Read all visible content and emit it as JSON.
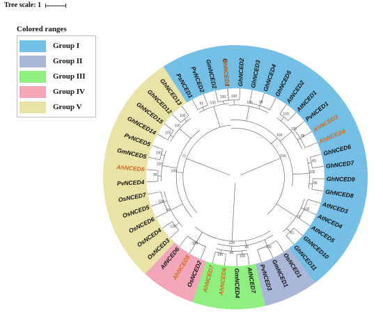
{
  "tree_scale": {
    "label": "Tree scale: 1"
  },
  "legend": {
    "title": "Colored ranges",
    "groups": [
      {
        "id": "I",
        "label": "Group I",
        "color": "#74bfe6"
      },
      {
        "id": "II",
        "label": "Group II",
        "color": "#a8b6d8"
      },
      {
        "id": "III",
        "label": "Group III",
        "color": "#8ef07e"
      },
      {
        "id": "IV",
        "label": "Group IV",
        "color": "#f2a6b7"
      },
      {
        "id": "V",
        "label": "Group V",
        "color": "#e9e3a6"
      }
    ]
  },
  "label_colors": {
    "default": "#111111",
    "highlight": "#d2691e"
  },
  "leaves": [
    {
      "name": "GhNCED1",
      "group": "I",
      "angle": 265,
      "highlight": false
    },
    {
      "name": "GhNCED2",
      "group": "I",
      "angle": 273,
      "highlight": false
    },
    {
      "name": "GhNCED3",
      "group": "I",
      "angle": 281,
      "highlight": false
    },
    {
      "name": "GhNCED4",
      "group": "I",
      "angle": 289,
      "highlight": false
    },
    {
      "name": "GhNCED5",
      "group": "I",
      "angle": 297,
      "highlight": false
    },
    {
      "name": "AtNCED2",
      "group": "I",
      "angle": 305,
      "highlight": false
    },
    {
      "name": "AtNCED1",
      "group": "I",
      "angle": 313,
      "highlight": false
    },
    {
      "name": "PvNCED1",
      "group": "I",
      "angle": 321,
      "highlight": false
    },
    {
      "name": "AhNCED3",
      "group": "I",
      "angle": 329,
      "highlight": true
    },
    {
      "name": "AhNCED4",
      "group": "I",
      "angle": 337,
      "highlight": true
    },
    {
      "name": "GhNCED6",
      "group": "I",
      "angle": 345,
      "highlight": false
    },
    {
      "name": "GhNCED7",
      "group": "I",
      "angle": 353,
      "highlight": false
    },
    {
      "name": "GhNCED9",
      "group": "I",
      "angle": 361,
      "highlight": false
    },
    {
      "name": "GhNCED8",
      "group": "I",
      "angle": 369,
      "highlight": false
    },
    {
      "name": "AtNCED3",
      "group": "I",
      "angle": 377,
      "highlight": false
    },
    {
      "name": "AtNCED4",
      "group": "I",
      "angle": 385,
      "highlight": false
    },
    {
      "name": "AtNCED5",
      "group": "I",
      "angle": 393,
      "highlight": false
    },
    {
      "name": "GhNCED10",
      "group": "I",
      "angle": 401,
      "highlight": false
    },
    {
      "name": "GhNCED11",
      "group": "I",
      "angle": 409,
      "highlight": false
    },
    {
      "name": "OsNCED1",
      "group": "II",
      "angle": 417,
      "highlight": false
    },
    {
      "name": "GmNCED1",
      "group": "II",
      "angle": 425,
      "highlight": false
    },
    {
      "name": "PvNCED3",
      "group": "II",
      "angle": 433,
      "highlight": false
    },
    {
      "name": "AtNCED7",
      "group": "III",
      "angle": 441,
      "highlight": false
    },
    {
      "name": "GmNCED4",
      "group": "III",
      "angle": 449,
      "highlight": false
    },
    {
      "name": "AhNCED6",
      "group": "III",
      "angle": 457,
      "highlight": true
    },
    {
      "name": "AhNCED7",
      "group": "III",
      "angle": 465,
      "highlight": true
    },
    {
      "name": "OsNCED2",
      "group": "IV",
      "angle": 473,
      "highlight": false
    },
    {
      "name": "AhNCED5",
      "group": "IV",
      "angle": 481,
      "highlight": true
    },
    {
      "name": "AtNCED6",
      "group": "IV",
      "angle": 489,
      "highlight": false
    },
    {
      "name": "OsNCED3",
      "group": "V",
      "angle": 497,
      "highlight": false
    },
    {
      "name": "OsNCED4",
      "group": "V",
      "angle": 505,
      "highlight": false
    },
    {
      "name": "OsNCED6",
      "group": "V",
      "angle": 513,
      "highlight": false
    },
    {
      "name": "OsNCED5",
      "group": "V",
      "angle": 521,
      "highlight": false
    },
    {
      "name": "OsNCED7",
      "group": "V",
      "angle": 529,
      "highlight": false
    },
    {
      "name": "PvNCED4",
      "group": "V",
      "angle": 537,
      "highlight": false
    },
    {
      "name": "AhNCED8",
      "group": "V",
      "angle": 545,
      "highlight": true
    },
    {
      "name": "GmNCED5",
      "group": "V",
      "angle": 553,
      "highlight": false
    },
    {
      "name": "PvNCED5",
      "group": "V",
      "angle": 561,
      "highlight": false
    },
    {
      "name": "GhNCED14",
      "group": "V",
      "angle": 569,
      "highlight": false
    },
    {
      "name": "GhNCED15",
      "group": "V",
      "angle": 577,
      "highlight": false
    },
    {
      "name": "GhNCED12",
      "group": "V",
      "angle": 585,
      "highlight": false
    },
    {
      "name": "GhNCED13",
      "group": "V",
      "angle": 593,
      "highlight": false
    },
    {
      "name": "PsNCED1",
      "group": "I",
      "angle": 601,
      "highlight": false
    },
    {
      "name": "PvNCED2",
      "group": "I",
      "angle": 609,
      "highlight": false
    },
    {
      "name": "GmNCED2",
      "group": "I",
      "angle": 617,
      "highlight": false
    },
    {
      "name": "AhNCED2",
      "group": "I",
      "angle": 625,
      "highlight": true
    }
  ],
  "bootstrap_values": [
    "100",
    "72",
    "100",
    "100",
    "100",
    "98",
    "92",
    "100",
    "100",
    "93",
    "98",
    "100",
    "100",
    "100",
    "100",
    "100",
    "100",
    "100",
    "98",
    "98",
    "100",
    "100",
    "81",
    "100",
    "100",
    "100",
    "100",
    "65",
    "89",
    "100",
    "95",
    "100",
    "100",
    "100",
    "91",
    "100",
    "100",
    "100",
    "100",
    "98"
  ]
}
